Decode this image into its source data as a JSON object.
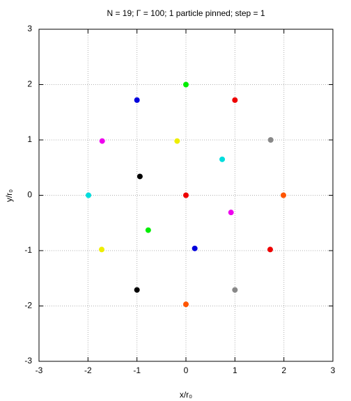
{
  "chart_data": {
    "type": "scatter",
    "title": "N = 19; Γ = 100; 1 particle pinned; step = 1",
    "xlabel": "x/r₀",
    "ylabel": "y/r₀",
    "x": [
      0,
      -1.0,
      1.0,
      -1.71,
      -0.18,
      1.73,
      0.74,
      -0.94,
      -1.99,
      0,
      1.99,
      0.92,
      -0.77,
      0.18,
      -1.72,
      1.72,
      -1.0,
      1.0,
      0
    ],
    "values": [
      2.0,
      1.72,
      1.72,
      0.98,
      0.98,
      1.0,
      0.65,
      0.34,
      0,
      0,
      0,
      -0.31,
      -0.63,
      -0.96,
      -0.98,
      -0.98,
      -1.71,
      -1.71,
      -1.97
    ],
    "colors": [
      "#00ee00",
      "#0000dd",
      "#ee0000",
      "#ee00ee",
      "#eeee00",
      "#888888",
      "#00dddd",
      "#000000",
      "#00dddd",
      "#ee0000",
      "#ff5500",
      "#ee00ee",
      "#00ee00",
      "#0000dd",
      "#eeee00",
      "#ee0000",
      "#000000",
      "#888888",
      "#ff5500"
    ],
    "xlim": [
      -3,
      3
    ],
    "ylim": [
      -3,
      3
    ],
    "xticks": [
      -3,
      -2,
      -1,
      0,
      1,
      2,
      3
    ],
    "yticks": [
      -3,
      -2,
      -1,
      0,
      1,
      2,
      3
    ],
    "grid": true
  }
}
